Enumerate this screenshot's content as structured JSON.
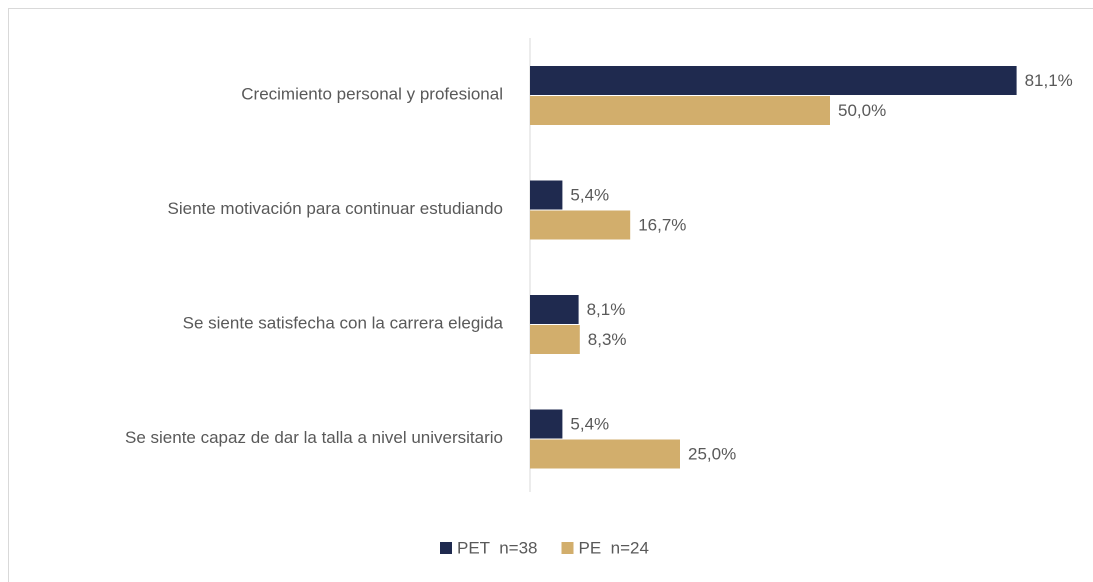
{
  "chart_data": {
    "type": "bar",
    "orientation": "horizontal",
    "categories": [
      "Crecimiento personal y profesional",
      "Siente motivación para continuar estudiando",
      "Se siente satisfecha con la carrera elegida",
      "Se siente capaz de dar la talla a nivel universitario"
    ],
    "series": [
      {
        "name": "PET  n=38",
        "color": "#1f2a4f",
        "values": [
          81.1,
          5.4,
          8.1,
          5.4
        ],
        "value_labels": [
          "81,1%",
          "5,4%",
          "8,1%",
          "5,4%"
        ]
      },
      {
        "name": "PE  n=24",
        "color": "#d2ae6c",
        "values": [
          50.0,
          16.7,
          8.3,
          25.0
        ],
        "value_labels": [
          "50,0%",
          "16,7%",
          "8,3%",
          "25,0%"
        ]
      }
    ],
    "legend": "bottom"
  }
}
